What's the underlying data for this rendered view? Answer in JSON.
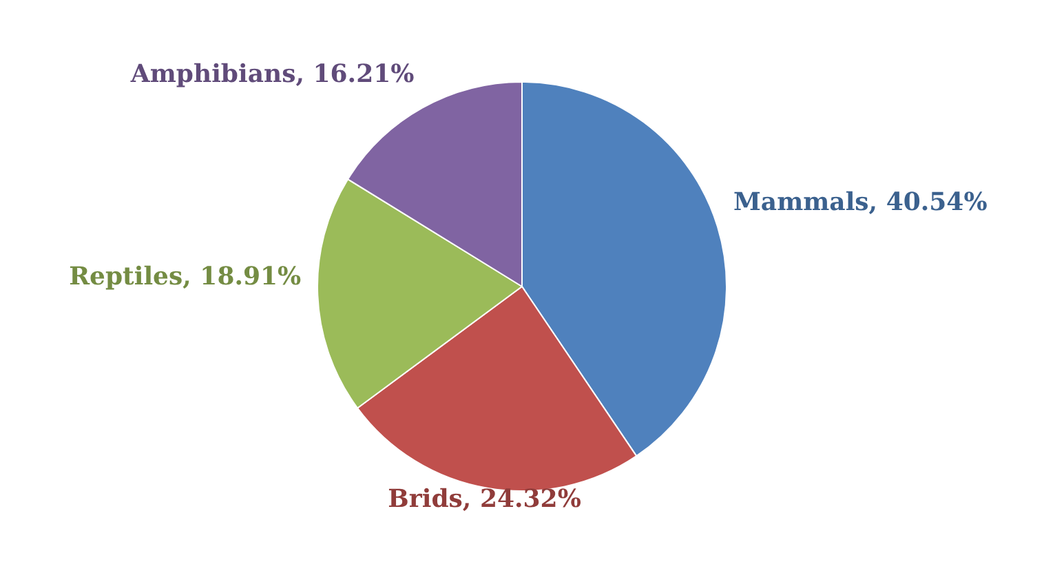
{
  "chart_data": {
    "type": "pie",
    "categories": [
      "Mammals",
      "Brids",
      "Reptiles",
      "Amphibians"
    ],
    "values": [
      40.54,
      24.32,
      18.91,
      16.21
    ],
    "colors": [
      "#4f81bd",
      "#c0504d",
      "#9bbb59",
      "#8064a2"
    ],
    "value_labels": [
      "40.54%",
      "24.32%",
      "18.91%",
      "16.21%"
    ],
    "legend": false
  }
}
